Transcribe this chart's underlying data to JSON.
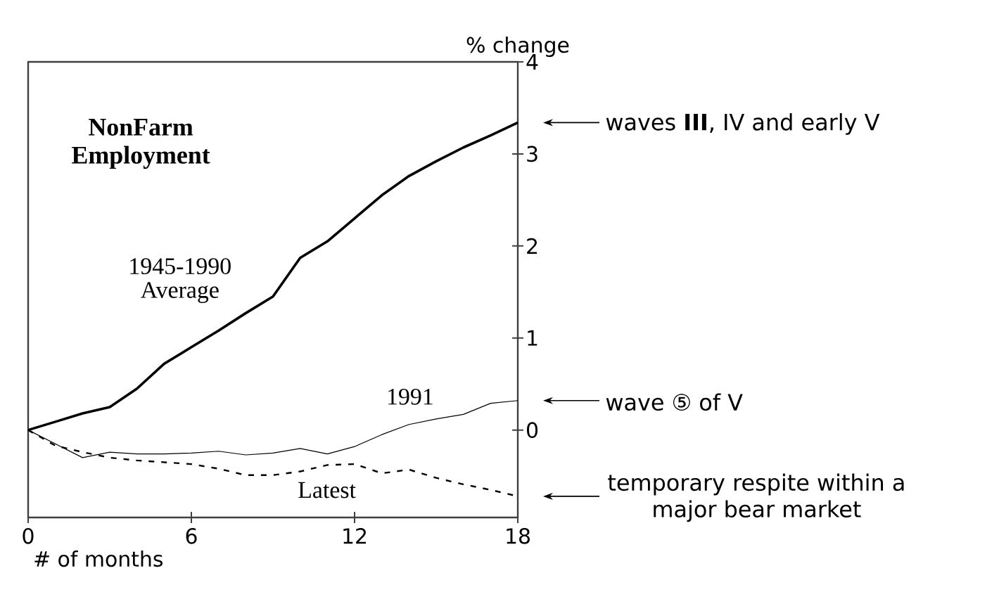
{
  "chart_data": {
    "type": "line",
    "title": "NonFarm Employment",
    "xlabel": "# of months",
    "ylabel": "% change",
    "x": [
      0,
      1,
      2,
      3,
      4,
      5,
      6,
      7,
      8,
      9,
      10,
      11,
      12,
      13,
      14,
      15,
      16,
      17,
      18
    ],
    "series": [
      {
        "name": "1945-1990 Average",
        "color": "#000000",
        "line_style": "solid",
        "values": [
          0,
          0.09,
          0.18,
          0.25,
          0.45,
          0.72,
          0.9,
          1.08,
          1.27,
          1.45,
          1.87,
          2.05,
          2.3,
          2.55,
          2.76,
          2.92,
          3.07,
          3.2,
          3.34
        ]
      },
      {
        "name": "1991",
        "color": "#000000",
        "line_style": "solid",
        "values": [
          0,
          -0.15,
          -0.3,
          -0.24,
          -0.26,
          -0.26,
          -0.25,
          -0.23,
          -0.27,
          -0.25,
          -0.2,
          -0.26,
          -0.18,
          -0.05,
          0.06,
          0.12,
          0.17,
          0.29,
          0.32
        ]
      },
      {
        "name": "Latest",
        "color": "#000000",
        "line_style": "dashed",
        "values": [
          0,
          -0.17,
          -0.24,
          -0.3,
          -0.33,
          -0.35,
          -0.37,
          -0.42,
          -0.49,
          -0.49,
          -0.45,
          -0.38,
          -0.37,
          -0.47,
          -0.43,
          -0.52,
          -0.59,
          -0.65,
          -0.72
        ]
      }
    ],
    "xlim": [
      0,
      18
    ],
    "xticks": [
      0,
      6,
      12,
      18
    ],
    "ylim": [
      -0.95,
      4
    ],
    "yticks": [
      0,
      1,
      2,
      3,
      4
    ],
    "grid": false,
    "legend": false,
    "marker": "none",
    "annotations": [
      "waves **III**, IV and early V",
      "wave ⑤ of V",
      "temporary respite within a major bear market"
    ]
  }
}
